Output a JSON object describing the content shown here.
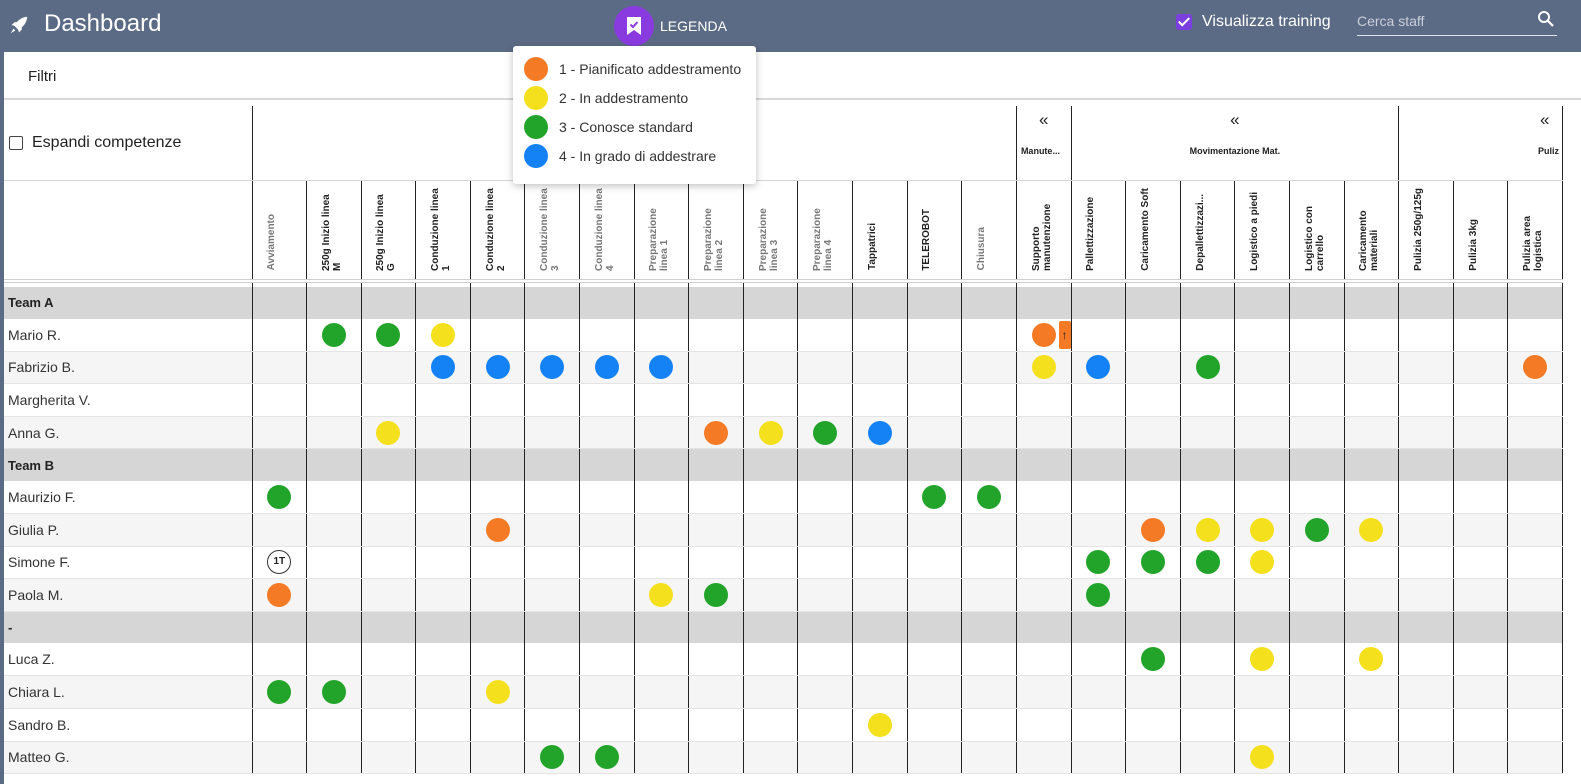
{
  "header": {
    "title": "Dashboard",
    "legend_label": "LEGENDA",
    "training_label": "Visualizza training",
    "search_placeholder": "Cerca staff"
  },
  "filters": {
    "label": "Filtri"
  },
  "legend": [
    {
      "label": "1 - Pianificato addestramento",
      "color": "#f47a25"
    },
    {
      "label": "2 - In addestramento",
      "color": "#f5e01d"
    },
    {
      "label": "3 - Conosce standard",
      "color": "#22a32a"
    },
    {
      "label": "4 - In grado di addestrare",
      "color": "#1482f5"
    }
  ],
  "expand_label": "Espandi competenze",
  "groups": [
    {
      "chevron": "«",
      "name": "Manute..."
    },
    {
      "chevron": "«",
      "name": "Movimentazione Mat."
    },
    {
      "chevron": "«",
      "name": "Puliz"
    }
  ],
  "columns": [
    "Avviamento",
    "250g Inizio linea M",
    "250g Inizio linea G",
    "Conduzione linea 1",
    "Conduzione linea 2",
    "Conduzione linea 3",
    "Conduzione linea 4",
    "Preparazione linea 1",
    "Preparazione linea 2",
    "Preparazione linea 3",
    "Preparazione linea 4",
    "Tappatrici",
    "TELEROBOT",
    "Chiusura",
    "Supporto manutenzione",
    "Pallettizzazione",
    "Caricamento Soft",
    "Depallettizzazi...",
    "Logistico a piedi",
    "Logistico con carrello",
    "Caricamento materiali",
    "Pulizia 250g/125g",
    "Pulizia 3kg",
    "Pulizia area logistica"
  ],
  "rows": [
    {
      "type": "team",
      "name": "Team A"
    },
    {
      "type": "person",
      "name": "Mario R.",
      "cells": {
        "1": 3,
        "2": 3,
        "3": 2,
        "14": 1
      },
      "extra": {
        "14": "↑"
      }
    },
    {
      "type": "person",
      "name": "Fabrizio B.",
      "cells": {
        "3": 4,
        "4": 4,
        "5": 4,
        "6": 4,
        "7": 4,
        "14": 2,
        "15": 4,
        "17": 3,
        "23": 1
      }
    },
    {
      "type": "person",
      "name": "Margherita V.",
      "cells": {}
    },
    {
      "type": "person",
      "name": "Anna G.",
      "cells": {
        "2": 2,
        "8": 1,
        "9": 2,
        "10": 3,
        "11": 4
      }
    },
    {
      "type": "team",
      "name": "Team B"
    },
    {
      "type": "person",
      "name": "Maurizio F.",
      "cells": {
        "0": 3,
        "12": 3,
        "13": 3
      }
    },
    {
      "type": "person",
      "name": "Giulia P.",
      "cells": {
        "4": 1,
        "16": 1,
        "17": 2,
        "18": 2,
        "19": 3,
        "20": 2
      }
    },
    {
      "type": "person",
      "name": "Simone F.",
      "cells": {
        "0": "1T",
        "15": 3,
        "16": 3,
        "17": 3,
        "18": 2
      }
    },
    {
      "type": "person",
      "name": "Paola M.",
      "cells": {
        "0": 1,
        "7": 2,
        "8": 3,
        "15": 3
      }
    },
    {
      "type": "team",
      "name": "-"
    },
    {
      "type": "person",
      "name": "Luca Z.",
      "cells": {
        "16": 3,
        "18": 2,
        "20": 2
      }
    },
    {
      "type": "person",
      "name": "Chiara L.",
      "cells": {
        "0": 3,
        "1": 3,
        "4": 2
      }
    },
    {
      "type": "person",
      "name": "Sandro B.",
      "cells": {
        "11": 2
      }
    },
    {
      "type": "person",
      "name": "Matteo G.",
      "cells": {
        "5": 3,
        "6": 3,
        "18": 2
      }
    }
  ],
  "level_names": {
    "1": "pianificato",
    "2": "in-addestramento",
    "3": "conosce-standard",
    "4": "in-grado-di-addestrare"
  }
}
